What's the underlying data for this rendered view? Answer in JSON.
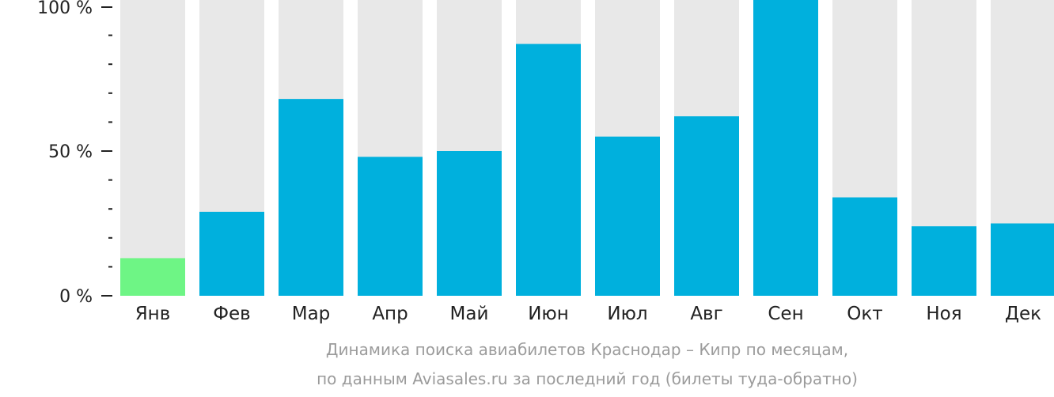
{
  "chart_data": {
    "type": "bar",
    "categories": [
      "Янв",
      "Фев",
      "Мар",
      "Апр",
      "Май",
      "Июн",
      "Июл",
      "Авг",
      "Сен",
      "Окт",
      "Ноя",
      "Дек"
    ],
    "values": [
      13,
      29,
      68,
      48,
      50,
      87,
      55,
      62,
      100,
      34,
      24,
      25
    ],
    "value_unit": "%",
    "ylim": [
      0,
      100
    ],
    "yticks": [
      "0 %",
      "50 %",
      "100 %"
    ],
    "minor_ticks_between_labels": 4,
    "highlight_index": 0,
    "colors": {
      "bar": "#00b0dd",
      "highlight": "#6ef585",
      "track": "#e8e8e8",
      "axis": "#222222"
    },
    "caption_line1": "Динамика поиска авиабилетов Краснодар – Кипр по месяцам,",
    "caption_line2": "по данным Aviasales.ru за последний год (билеты туда-обратно)"
  }
}
